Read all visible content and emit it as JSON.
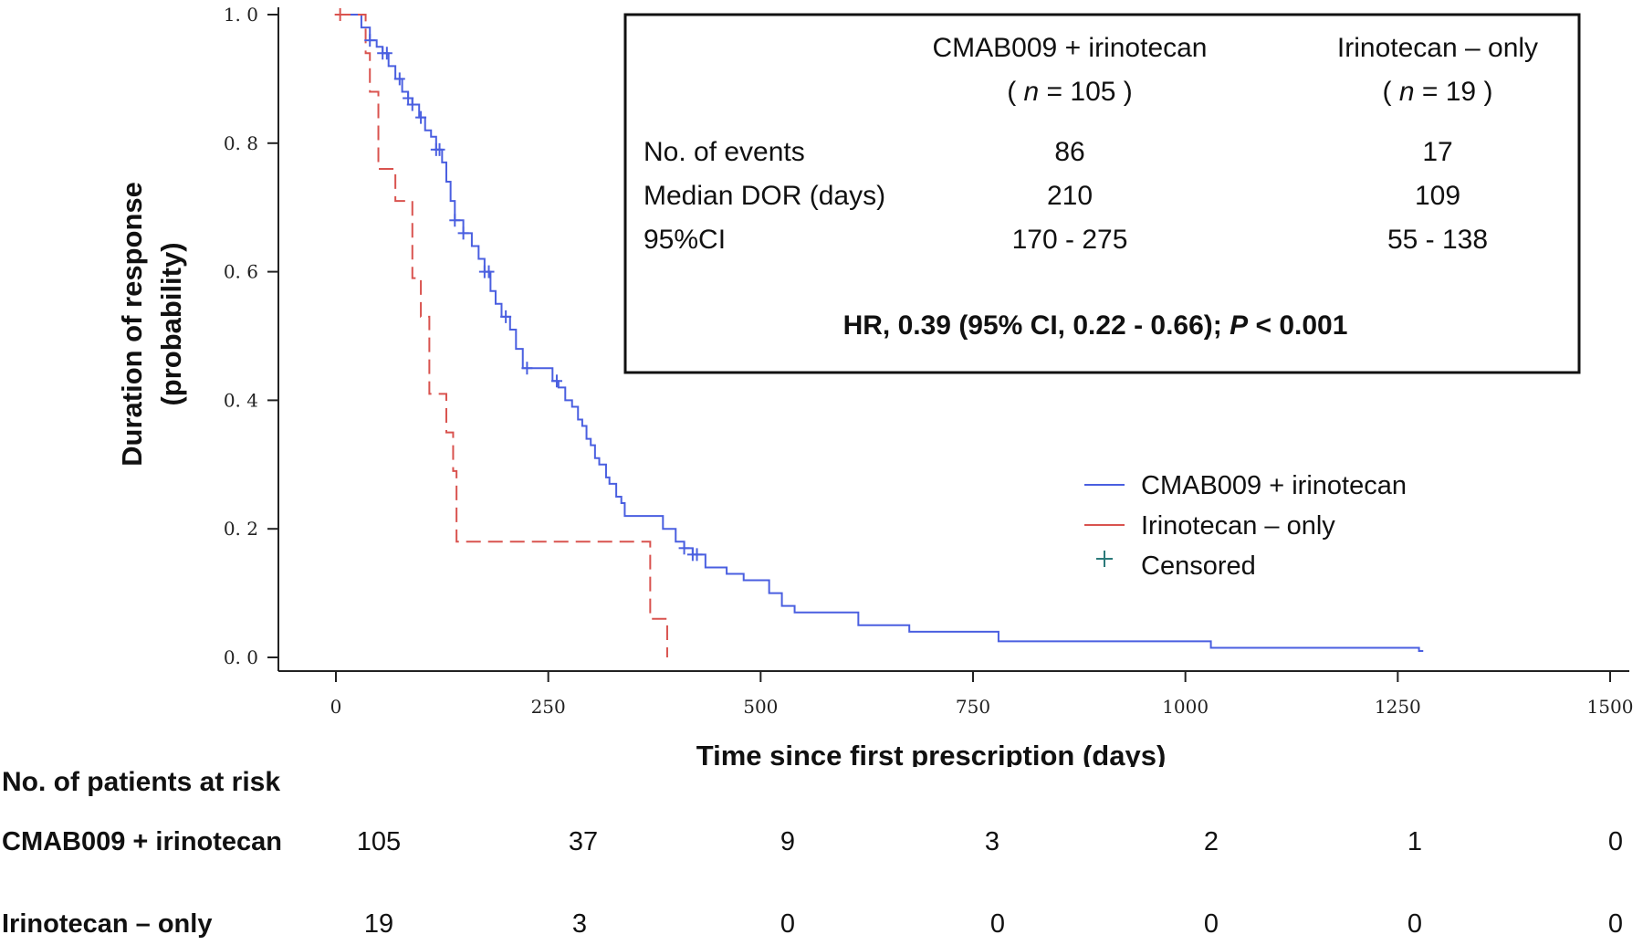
{
  "chart_data": {
    "type": "line",
    "subtype": "kaplan-meier step curve",
    "xlabel": "Time since first prescription (days)",
    "ylabel_line1": "Duration of response",
    "ylabel_line2": "(probability)",
    "xlim": [
      0,
      1500
    ],
    "ylim": [
      0,
      1.0
    ],
    "x_ticks": [
      0,
      250,
      500,
      750,
      1000,
      1250,
      1500
    ],
    "x_tick_labels": [
      "0",
      "250",
      "500",
      "750",
      "1000",
      "1250",
      "1500"
    ],
    "y_ticks": [
      0,
      0.2,
      0.4,
      0.6,
      0.8,
      1.0
    ],
    "y_tick_labels": [
      "0. 0",
      "0. 2",
      "0. 4",
      "0. 6",
      "0. 8",
      "1. 0"
    ],
    "grid": false,
    "series": [
      {
        "name": "CMAB009 + irinotecan",
        "color": "#4a5fe0",
        "dash": false,
        "x": [
          0,
          15,
          30,
          40,
          48,
          55,
          62,
          70,
          78,
          85,
          90,
          98,
          105,
          112,
          118,
          125,
          130,
          135,
          140,
          150,
          160,
          168,
          175,
          182,
          188,
          195,
          205,
          212,
          220,
          240,
          255,
          262,
          270,
          278,
          285,
          290,
          295,
          300,
          305,
          310,
          318,
          322,
          330,
          336,
          340,
          385,
          400,
          410,
          420,
          435,
          460,
          480,
          510,
          525,
          540,
          615,
          675,
          780,
          1030,
          1275
        ],
        "y": [
          1.0,
          1.0,
          0.98,
          0.96,
          0.95,
          0.94,
          0.92,
          0.9,
          0.88,
          0.87,
          0.86,
          0.84,
          0.82,
          0.81,
          0.79,
          0.77,
          0.74,
          0.71,
          0.68,
          0.66,
          0.64,
          0.62,
          0.6,
          0.57,
          0.55,
          0.53,
          0.51,
          0.48,
          0.45,
          0.45,
          0.43,
          0.42,
          0.4,
          0.39,
          0.37,
          0.36,
          0.34,
          0.33,
          0.31,
          0.3,
          0.28,
          0.27,
          0.25,
          0.24,
          0.22,
          0.2,
          0.18,
          0.17,
          0.16,
          0.14,
          0.13,
          0.12,
          0.1,
          0.08,
          0.07,
          0.05,
          0.04,
          0.025,
          0.015,
          0.01
        ],
        "end_x": 1280
      },
      {
        "name": "Irinotecan – only",
        "color": "#d9534f",
        "dash": true,
        "x": [
          0,
          15,
          35,
          40,
          50,
          70,
          90,
          100,
          110,
          130,
          138,
          142,
          365,
          370,
          390
        ],
        "y": [
          1.0,
          1.0,
          0.94,
          0.88,
          0.76,
          0.71,
          0.59,
          0.53,
          0.41,
          0.35,
          0.29,
          0.18,
          0.18,
          0.06,
          0.0
        ],
        "end_x": 390
      }
    ],
    "censored": [
      {
        "series": 0,
        "x": [
          40,
          55,
          60,
          75,
          85,
          90,
          100,
          118,
          122,
          140,
          150,
          175,
          180,
          200,
          225,
          260,
          410,
          420,
          425
        ]
      },
      {
        "series": 1,
        "x": [
          5
        ]
      }
    ],
    "legend": {
      "position": "right-center",
      "entries": [
        "CMAB009 + irinotecan",
        "Irinotecan – only",
        "Censored"
      ]
    }
  },
  "stats_box": {
    "col1_header": "CMAB009 + irinotecan",
    "col1_n_prefix": "( ",
    "col1_n_italic": "n",
    "col1_n_suffix": " = 105 )",
    "col2_header": "Irinotecan – only",
    "col2_n_prefix": "( ",
    "col2_n_italic": "n",
    "col2_n_suffix": " = 19 )",
    "rows": [
      {
        "label": "No. of events",
        "col1": "86",
        "col2": "17"
      },
      {
        "label": "Median DOR (days)",
        "col1": "210",
        "col2": "109"
      },
      {
        "label": "95%CI",
        "col1": "170 - 275",
        "col2": "55 - 138"
      }
    ],
    "hr_text": "HR, 0.39 (95% CI, 0.22 - 0.66); ",
    "p_italic": "P",
    "p_text": " < 0.001"
  },
  "risk_table": {
    "title": "No. of patients at risk",
    "rows": [
      {
        "label": "CMAB009 + irinotecan",
        "values": [
          "105",
          "37",
          "9",
          "3",
          "2",
          "1",
          "0"
        ]
      },
      {
        "label": "Irinotecan – only",
        "values": [
          "19",
          "3",
          "0",
          "0",
          "0",
          "0",
          "0"
        ]
      }
    ]
  }
}
